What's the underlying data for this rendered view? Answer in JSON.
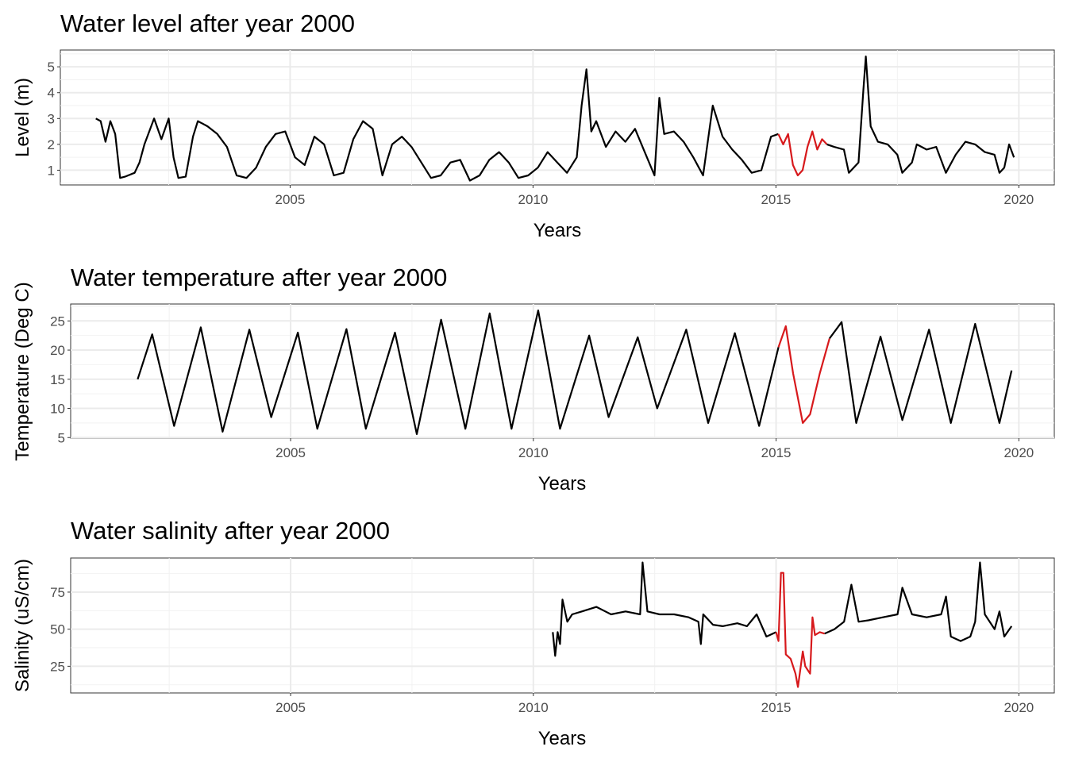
{
  "chart_data": [
    {
      "type": "line",
      "title": "Water level after year 2000",
      "xlabel": "Years",
      "ylabel": "Level (m)",
      "xlim": [
        2000.27,
        2020.73
      ],
      "ylim": [
        0.43,
        5.65
      ],
      "xticks": [
        "2005",
        "2010",
        "2015",
        "2020"
      ],
      "xtick_values": [
        2005,
        2010,
        2015,
        2020
      ],
      "yticks": [
        "1",
        "2",
        "3",
        "4",
        "5"
      ],
      "ytick_values": [
        1,
        2,
        3,
        4,
        5
      ],
      "grid": true,
      "series": [
        {
          "color": "#000000",
          "points": [
            [
              2001.0,
              3.0
            ],
            [
              2001.1,
              2.9
            ],
            [
              2001.2,
              2.1
            ],
            [
              2001.3,
              2.9
            ],
            [
              2001.4,
              2.4
            ],
            [
              2001.5,
              0.7
            ],
            [
              2001.6,
              0.75
            ],
            [
              2001.8,
              0.9
            ],
            [
              2001.9,
              1.3
            ],
            [
              2002.0,
              2.0
            ],
            [
              2002.1,
              2.5
            ],
            [
              2002.2,
              3.0
            ],
            [
              2002.35,
              2.2
            ],
            [
              2002.5,
              3.0
            ],
            [
              2002.6,
              1.5
            ],
            [
              2002.7,
              0.7
            ],
            [
              2002.85,
              0.75
            ],
            [
              2003.0,
              2.3
            ],
            [
              2003.1,
              2.9
            ],
            [
              2003.3,
              2.7
            ],
            [
              2003.5,
              2.4
            ],
            [
              2003.7,
              1.9
            ],
            [
              2003.9,
              0.8
            ],
            [
              2004.1,
              0.7
            ],
            [
              2004.3,
              1.1
            ],
            [
              2004.5,
              1.9
            ],
            [
              2004.7,
              2.4
            ],
            [
              2004.9,
              2.5
            ],
            [
              2005.1,
              1.5
            ],
            [
              2005.3,
              1.2
            ],
            [
              2005.5,
              2.3
            ],
            [
              2005.7,
              2.0
            ],
            [
              2005.9,
              0.8
            ],
            [
              2006.1,
              0.9
            ],
            [
              2006.3,
              2.2
            ],
            [
              2006.5,
              2.9
            ],
            [
              2006.7,
              2.6
            ],
            [
              2006.9,
              0.8
            ],
            [
              2007.1,
              2.0
            ],
            [
              2007.3,
              2.3
            ],
            [
              2007.5,
              1.9
            ],
            [
              2007.7,
              1.3
            ],
            [
              2007.9,
              0.7
            ],
            [
              2008.1,
              0.8
            ],
            [
              2008.3,
              1.3
            ],
            [
              2008.5,
              1.4
            ],
            [
              2008.7,
              0.6
            ],
            [
              2008.9,
              0.8
            ],
            [
              2009.1,
              1.4
            ],
            [
              2009.3,
              1.7
            ],
            [
              2009.5,
              1.3
            ],
            [
              2009.7,
              0.7
            ],
            [
              2009.9,
              0.8
            ],
            [
              2010.1,
              1.1
            ],
            [
              2010.3,
              1.7
            ],
            [
              2010.5,
              1.3
            ],
            [
              2010.7,
              0.9
            ],
            [
              2010.9,
              1.5
            ],
            [
              2011.0,
              3.5
            ],
            [
              2011.1,
              4.9
            ],
            [
              2011.2,
              2.5
            ],
            [
              2011.3,
              2.9
            ],
            [
              2011.5,
              1.9
            ],
            [
              2011.7,
              2.5
            ],
            [
              2011.9,
              2.1
            ],
            [
              2012.1,
              2.6
            ],
            [
              2012.3,
              1.7
            ],
            [
              2012.5,
              0.8
            ],
            [
              2012.6,
              3.8
            ],
            [
              2012.7,
              2.4
            ],
            [
              2012.9,
              2.5
            ],
            [
              2013.1,
              2.1
            ],
            [
              2013.3,
              1.5
            ],
            [
              2013.5,
              0.8
            ],
            [
              2013.7,
              3.5
            ],
            [
              2013.9,
              2.3
            ],
            [
              2014.1,
              1.8
            ],
            [
              2014.3,
              1.4
            ],
            [
              2014.5,
              0.9
            ],
            [
              2014.7,
              1.0
            ],
            [
              2014.9,
              2.3
            ],
            [
              2015.05,
              2.4
            ]
          ]
        },
        {
          "color": "#d7191c",
          "points": [
            [
              2015.05,
              2.4
            ],
            [
              2015.15,
              2.0
            ],
            [
              2015.25,
              2.4
            ],
            [
              2015.35,
              1.2
            ],
            [
              2015.45,
              0.8
            ],
            [
              2015.55,
              1.0
            ],
            [
              2015.65,
              1.9
            ],
            [
              2015.75,
              2.5
            ],
            [
              2015.85,
              1.8
            ],
            [
              2015.95,
              2.2
            ],
            [
              2016.05,
              2.0
            ]
          ]
        },
        {
          "color": "#000000",
          "points": [
            [
              2016.05,
              2.0
            ],
            [
              2016.2,
              1.9
            ],
            [
              2016.4,
              1.8
            ],
            [
              2016.5,
              0.9
            ],
            [
              2016.7,
              1.3
            ],
            [
              2016.8,
              4.1
            ],
            [
              2016.85,
              5.4
            ],
            [
              2016.95,
              2.7
            ],
            [
              2017.1,
              2.1
            ],
            [
              2017.3,
              2.0
            ],
            [
              2017.5,
              1.6
            ],
            [
              2017.6,
              0.9
            ],
            [
              2017.8,
              1.3
            ],
            [
              2017.9,
              2.0
            ],
            [
              2018.1,
              1.8
            ],
            [
              2018.3,
              1.9
            ],
            [
              2018.5,
              0.9
            ],
            [
              2018.7,
              1.6
            ],
            [
              2018.9,
              2.1
            ],
            [
              2019.1,
              2.0
            ],
            [
              2019.3,
              1.7
            ],
            [
              2019.5,
              1.6
            ],
            [
              2019.6,
              0.9
            ],
            [
              2019.7,
              1.1
            ],
            [
              2019.8,
              2.0
            ],
            [
              2019.9,
              1.5
            ]
          ]
        }
      ]
    },
    {
      "type": "line",
      "title": "Water temperature after year 2000",
      "xlabel": "Years",
      "ylabel": "Temperature (Deg C)",
      "xlim": [
        2000.47,
        2020.73
      ],
      "ylim": [
        4.9,
        27.9
      ],
      "xticks": [
        "2005",
        "2010",
        "2015",
        "2020"
      ],
      "xtick_values": [
        2005,
        2010,
        2015,
        2020
      ],
      "yticks": [
        "5",
        "10",
        "15",
        "20",
        "25"
      ],
      "ytick_values": [
        5,
        10,
        15,
        20,
        25
      ],
      "grid": true,
      "series": [
        {
          "color": "#000000",
          "points": [
            [
              2001.85,
              15
            ],
            [
              2002.15,
              22.7
            ],
            [
              2002.6,
              7
            ],
            [
              2003.15,
              23.9
            ],
            [
              2003.6,
              6
            ],
            [
              2004.15,
              23.5
            ],
            [
              2004.6,
              8.5
            ],
            [
              2005.15,
              23
            ],
            [
              2005.55,
              6.5
            ],
            [
              2006.15,
              23.6
            ],
            [
              2006.55,
              6.5
            ],
            [
              2007.15,
              23
            ],
            [
              2007.6,
              5.6
            ],
            [
              2008.1,
              25.2
            ],
            [
              2008.6,
              6.5
            ],
            [
              2009.1,
              26.3
            ],
            [
              2009.55,
              6.5
            ],
            [
              2010.1,
              26.8
            ],
            [
              2010.55,
              6.5
            ],
            [
              2011.15,
              22.5
            ],
            [
              2011.55,
              8.5
            ],
            [
              2012.15,
              22.2
            ],
            [
              2012.55,
              10
            ],
            [
              2013.15,
              23.5
            ],
            [
              2013.6,
              7.5
            ],
            [
              2014.15,
              22.9
            ],
            [
              2014.65,
              7
            ],
            [
              2015.05,
              20.5
            ]
          ]
        },
        {
          "color": "#d7191c",
          "points": [
            [
              2015.05,
              20.5
            ],
            [
              2015.2,
              24.1
            ],
            [
              2015.35,
              16
            ],
            [
              2015.55,
              7.5
            ],
            [
              2015.7,
              9
            ],
            [
              2015.9,
              16
            ],
            [
              2016.1,
              22
            ]
          ]
        },
        {
          "color": "#000000",
          "points": [
            [
              2016.1,
              22
            ],
            [
              2016.35,
              24.8
            ],
            [
              2016.65,
              7.5
            ],
            [
              2017.15,
              22.3
            ],
            [
              2017.6,
              8
            ],
            [
              2018.15,
              23.5
            ],
            [
              2018.6,
              7.5
            ],
            [
              2019.1,
              24.5
            ],
            [
              2019.6,
              7.5
            ],
            [
              2019.85,
              16.5
            ]
          ]
        }
      ]
    },
    {
      "type": "line",
      "title": "Water salinity after year 2000",
      "xlabel": "Years",
      "ylabel": "Salinity (uS/cm)",
      "xlim": [
        2000.47,
        2020.73
      ],
      "ylim": [
        7,
        98
      ],
      "xticks": [
        "2005",
        "2010",
        "2015",
        "2020"
      ],
      "xtick_values": [
        2005,
        2010,
        2015,
        2020
      ],
      "yticks": [
        "25",
        "50",
        "75"
      ],
      "ytick_values": [
        25,
        50,
        75
      ],
      "grid": true,
      "series": [
        {
          "color": "#000000",
          "points": [
            [
              2010.4,
              48
            ],
            [
              2010.45,
              32
            ],
            [
              2010.5,
              48
            ],
            [
              2010.55,
              40
            ],
            [
              2010.6,
              70
            ],
            [
              2010.7,
              55
            ],
            [
              2010.8,
              60
            ],
            [
              2011.0,
              62
            ],
            [
              2011.3,
              65
            ],
            [
              2011.6,
              60
            ],
            [
              2011.9,
              62
            ],
            [
              2012.2,
              60
            ],
            [
              2012.25,
              95
            ],
            [
              2012.35,
              62
            ],
            [
              2012.6,
              60
            ],
            [
              2012.9,
              60
            ],
            [
              2013.2,
              58
            ],
            [
              2013.4,
              55
            ],
            [
              2013.45,
              40
            ],
            [
              2013.5,
              60
            ],
            [
              2013.7,
              53
            ],
            [
              2013.9,
              52
            ],
            [
              2014.2,
              54
            ],
            [
              2014.4,
              52
            ],
            [
              2014.6,
              60
            ],
            [
              2014.8,
              45
            ],
            [
              2015.0,
              48
            ]
          ]
        },
        {
          "color": "#d7191c",
          "points": [
            [
              2015.0,
              48
            ],
            [
              2015.05,
              42
            ],
            [
              2015.1,
              88
            ],
            [
              2015.15,
              88
            ],
            [
              2015.2,
              33
            ],
            [
              2015.3,
              30
            ],
            [
              2015.4,
              20
            ],
            [
              2015.45,
              11
            ],
            [
              2015.55,
              35
            ],
            [
              2015.6,
              25
            ],
            [
              2015.7,
              20
            ],
            [
              2015.75,
              58
            ],
            [
              2015.8,
              46
            ],
            [
              2015.9,
              48
            ],
            [
              2016.0,
              47
            ]
          ]
        },
        {
          "color": "#000000",
          "points": [
            [
              2016.0,
              47
            ],
            [
              2016.2,
              50
            ],
            [
              2016.4,
              55
            ],
            [
              2016.55,
              80
            ],
            [
              2016.7,
              55
            ],
            [
              2016.9,
              56
            ],
            [
              2017.2,
              58
            ],
            [
              2017.5,
              60
            ],
            [
              2017.6,
              78
            ],
            [
              2017.8,
              60
            ],
            [
              2018.1,
              58
            ],
            [
              2018.4,
              60
            ],
            [
              2018.5,
              72
            ],
            [
              2018.6,
              45
            ],
            [
              2018.8,
              42
            ],
            [
              2019.0,
              45
            ],
            [
              2019.1,
              55
            ],
            [
              2019.2,
              95
            ],
            [
              2019.3,
              60
            ],
            [
              2019.5,
              50
            ],
            [
              2019.6,
              62
            ],
            [
              2019.7,
              45
            ],
            [
              2019.85,
              52
            ]
          ]
        }
      ]
    }
  ]
}
